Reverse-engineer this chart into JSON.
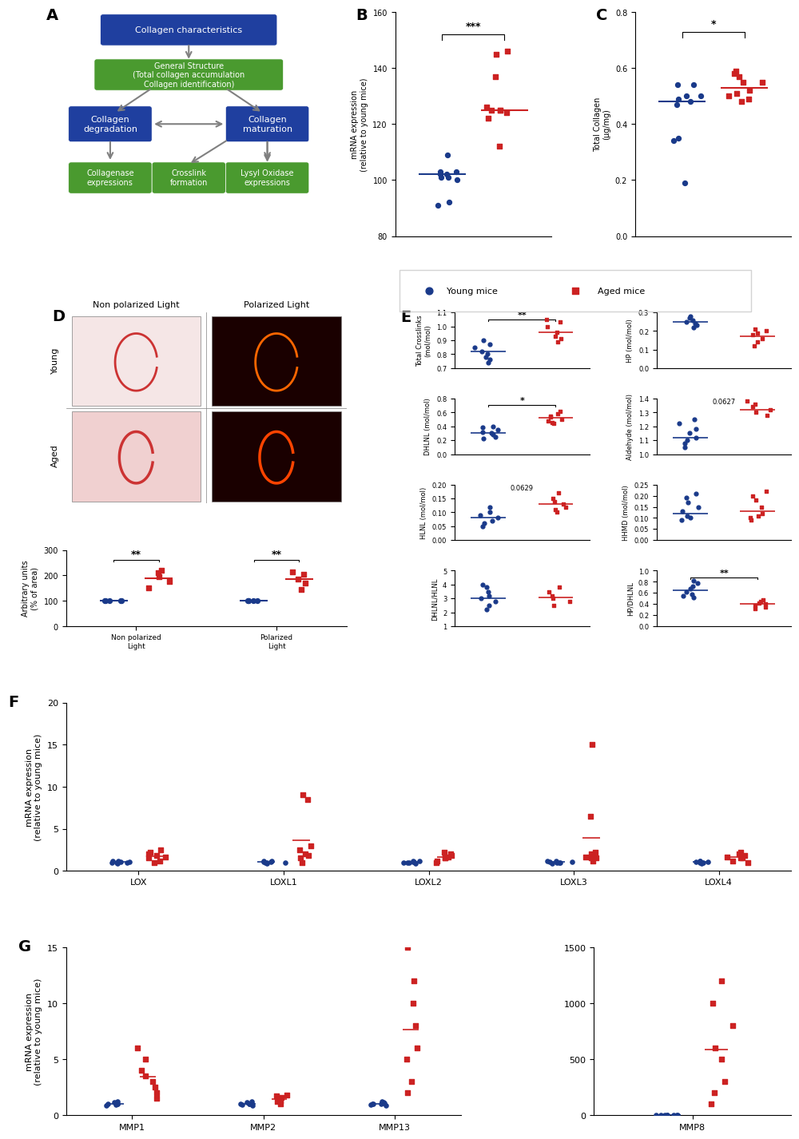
{
  "blue": "#1f3f9f",
  "red": "#cc2222",
  "young_color": "#1a3a8a",
  "aged_color": "#cc2222",
  "panel_B": {
    "young": [
      102,
      101,
      101,
      103,
      103,
      102,
      100,
      92,
      91,
      109
    ],
    "aged": [
      125,
      125,
      124,
      126,
      122,
      112,
      137,
      146,
      145,
      125
    ],
    "young_mean": 102,
    "aged_mean": 125,
    "ylim": [
      80,
      160
    ],
    "yticks": [
      80,
      100,
      120,
      140,
      160
    ],
    "ylabel": "mRNA expression\n(relative to young mice)",
    "sig": "***"
  },
  "panel_C": {
    "young": [
      0.19,
      0.34,
      0.35,
      0.47,
      0.48,
      0.49,
      0.5,
      0.5,
      0.54,
      0.54
    ],
    "aged": [
      0.48,
      0.49,
      0.5,
      0.51,
      0.52,
      0.55,
      0.55,
      0.57,
      0.58,
      0.59
    ],
    "young_mean": 0.48,
    "aged_mean": 0.53,
    "ylim": [
      0.0,
      0.8
    ],
    "yticks": [
      0.0,
      0.2,
      0.4,
      0.6,
      0.8
    ],
    "ylabel": "Total Collagen\n(μg/mg)",
    "sig": "*"
  },
  "panel_D_scatter": {
    "categories": [
      "Non polarized\nLight",
      "Polarized\nLight"
    ],
    "young": [
      [
        100,
        100,
        100,
        100,
        100
      ],
      [
        100,
        100,
        100,
        100,
        100
      ]
    ],
    "aged": [
      [
        150,
        175,
        195,
        210,
        220
      ],
      [
        145,
        170,
        185,
        205,
        215
      ]
    ],
    "young_mean": [
      100,
      100
    ],
    "aged_mean": [
      190,
      185
    ],
    "ylim": [
      0,
      300
    ],
    "yticks": [
      0,
      100,
      200,
      300
    ],
    "ylabel": "Arbitrary units\n(% of area)",
    "sig": [
      "**",
      "**"
    ]
  },
  "panel_E": {
    "Total_Crosslinks": {
      "young": [
        0.74,
        0.76,
        0.78,
        0.8,
        0.82,
        0.85,
        0.87,
        0.9
      ],
      "aged": [
        0.89,
        0.91,
        0.93,
        0.96,
        1.0,
        1.03,
        1.05
      ],
      "young_mean": 0.82,
      "aged_mean": 0.96,
      "ylim": [
        0.7,
        1.1
      ],
      "yticks": [
        0.7,
        0.8,
        0.9,
        1.0,
        1.1
      ],
      "ylabel": "Total Crosslinks\n(mol/mol)",
      "sig": "**"
    },
    "HP": {
      "young": [
        0.22,
        0.23,
        0.24,
        0.25,
        0.26,
        0.27,
        0.28
      ],
      "aged": [
        0.12,
        0.14,
        0.16,
        0.18,
        0.19,
        0.2,
        0.21
      ],
      "young_mean": 0.25,
      "aged_mean": 0.17,
      "ylim": [
        0.0,
        0.3
      ],
      "yticks": [
        0.0,
        0.1,
        0.2,
        0.3
      ],
      "ylabel": "HP (mol/mol)",
      "sig": null
    },
    "DHLNL": {
      "young": [
        0.22,
        0.25,
        0.28,
        0.3,
        0.32,
        0.35,
        0.38,
        0.4
      ],
      "aged": [
        0.44,
        0.46,
        0.48,
        0.5,
        0.53,
        0.55,
        0.58,
        0.62
      ],
      "young_mean": 0.31,
      "aged_mean": 0.52,
      "ylim": [
        0.0,
        0.8
      ],
      "yticks": [
        0.0,
        0.2,
        0.4,
        0.6,
        0.8
      ],
      "ylabel": "DHLNL (mol/mol)",
      "sig": "*"
    },
    "Aldehyde": {
      "young": [
        1.05,
        1.08,
        1.1,
        1.12,
        1.15,
        1.18,
        1.22,
        1.25
      ],
      "aged": [
        1.28,
        1.3,
        1.32,
        1.34,
        1.36,
        1.38
      ],
      "young_mean": 1.12,
      "aged_mean": 1.32,
      "ylim": [
        1.0,
        1.4
      ],
      "yticks": [
        1.0,
        1.1,
        1.2,
        1.3,
        1.4
      ],
      "ylabel": "Aldehyde (mol/mol)",
      "sig": "0.0627",
      "sig_type": "text"
    },
    "HLNL": {
      "young": [
        0.05,
        0.06,
        0.07,
        0.08,
        0.09,
        0.1,
        0.12
      ],
      "aged": [
        0.1,
        0.11,
        0.12,
        0.13,
        0.14,
        0.15,
        0.17
      ],
      "young_mean": 0.08,
      "aged_mean": 0.13,
      "ylim": [
        0.0,
        0.2
      ],
      "yticks": [
        0.0,
        0.05,
        0.1,
        0.15,
        0.2
      ],
      "ylabel": "HLNL (mol/mol)",
      "sig": "0.0629",
      "sig_type": "text"
    },
    "HHMD": {
      "young": [
        0.09,
        0.1,
        0.11,
        0.13,
        0.15,
        0.17,
        0.19,
        0.21
      ],
      "aged": [
        0.09,
        0.1,
        0.11,
        0.12,
        0.15,
        0.18,
        0.2,
        0.22
      ],
      "young_mean": 0.12,
      "aged_mean": 0.13,
      "ylim": [
        0.0,
        0.25
      ],
      "yticks": [
        0.0,
        0.05,
        0.1,
        0.15,
        0.2,
        0.25
      ],
      "ylabel": "HHMD (mol/mol)",
      "sig": null
    },
    "DHLNL_HLNL": {
      "young": [
        2.2,
        2.5,
        2.8,
        3.0,
        3.2,
        3.5,
        3.8,
        4.0
      ],
      "aged": [
        2.5,
        2.8,
        3.0,
        3.2,
        3.5,
        3.8
      ],
      "young_mean": 3.0,
      "aged_mean": 3.1,
      "ylim": [
        1,
        5
      ],
      "yticks": [
        1,
        2,
        3,
        4,
        5
      ],
      "ylabel": "DHLNL/HLNL",
      "sig": null
    },
    "HP_DHLNL": {
      "young": [
        0.52,
        0.55,
        0.58,
        0.62,
        0.68,
        0.72,
        0.78,
        0.82
      ],
      "aged": [
        0.32,
        0.35,
        0.38,
        0.4,
        0.42,
        0.45,
        0.48
      ],
      "young_mean": 0.65,
      "aged_mean": 0.4,
      "ylim": [
        0.0,
        1.0
      ],
      "yticks": [
        0.0,
        0.2,
        0.4,
        0.6,
        0.8,
        1.0
      ],
      "ylabel": "HP/DHLNL",
      "sig": "**"
    }
  },
  "panel_F": {
    "categories": [
      "LOX",
      "LOXL1",
      "LOXL2",
      "LOXL3",
      "LOXL4"
    ],
    "young": [
      [
        1.0,
        1.1,
        0.9,
        1.2,
        1.05,
        1.15,
        0.95,
        1.0
      ],
      [
        1.0,
        1.2,
        0.9,
        1.1,
        1.05,
        0.95,
        1.15,
        1.0
      ],
      [
        1.0,
        1.1,
        0.9,
        1.2,
        1.0,
        1.15,
        0.95,
        1.05
      ],
      [
        1.0,
        1.1,
        0.9,
        1.2,
        1.05,
        1.15,
        0.95,
        1.0
      ],
      [
        1.0,
        1.1,
        0.9,
        1.2,
        1.05,
        1.15,
        0.95,
        1.0
      ]
    ],
    "aged": [
      [
        1.5,
        2.0,
        1.8,
        2.5,
        1.2,
        1.0,
        2.2,
        1.6
      ],
      [
        1.0,
        9.0,
        2.5,
        3.0,
        1.5,
        2.0,
        8.5,
        1.8
      ],
      [
        1.5,
        2.0,
        1.8,
        1.2,
        1.0,
        1.5,
        2.2,
        1.6
      ],
      [
        1.5,
        2.0,
        6.5,
        1.2,
        15.0,
        1.5,
        2.2,
        1.6
      ],
      [
        1.5,
        2.0,
        1.8,
        1.2,
        1.0,
        1.5,
        2.2,
        1.6
      ]
    ],
    "ylim": [
      0,
      20
    ],
    "yticks": [
      0,
      5,
      10,
      15,
      20
    ],
    "ylabel": "mRNA expression\n(relative to young mice)"
  },
  "panel_G": {
    "categories_left": [
      "MMP1",
      "MMP2",
      "MMP13"
    ],
    "categories_right": [
      "MMP8"
    ],
    "young_left": [
      [
        1.0,
        1.1,
        0.9,
        1.2,
        1.05,
        1.15,
        0.95,
        1.0
      ],
      [
        1.0,
        1.2,
        0.9,
        1.1,
        1.05,
        0.95,
        1.15,
        1.0
      ],
      [
        1.0,
        1.1,
        0.9,
        1.2,
        1.0,
        1.15,
        0.95,
        1.05
      ]
    ],
    "aged_left": [
      [
        3.0,
        5.0,
        2.0,
        4.0,
        1.5,
        6.0,
        3.5,
        2.5
      ],
      [
        1.0,
        1.5,
        1.2,
        1.8,
        1.3,
        1.6,
        1.4,
        1.7
      ],
      [
        2.0,
        5.0,
        8.0,
        10.0,
        12.0,
        15.0,
        3.0,
        6.0
      ]
    ],
    "young_right": [
      [
        1.0,
        1.1,
        0.9,
        1.2,
        1.05,
        1.15,
        0.95,
        1.0
      ]
    ],
    "aged_right": [
      [
        100,
        200,
        500,
        800,
        1000,
        1200,
        300,
        600
      ]
    ],
    "ylim_left": [
      0,
      15
    ],
    "yticks_left": [
      0,
      5,
      10,
      15
    ],
    "ylim_right": [
      0,
      1500
    ],
    "yticks_right": [
      0,
      500,
      1000,
      1500
    ],
    "ylabel": "mRNA expression\n(relative to young mice)"
  }
}
